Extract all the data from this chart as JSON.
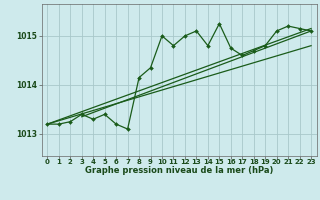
{
  "title": "Graphe pression niveau de la mer (hPa)",
  "bg_color": "#ceeaec",
  "grid_color": "#a8c8ca",
  "line_color": "#1a5c1a",
  "x_ticks": [
    0,
    1,
    2,
    3,
    4,
    5,
    6,
    7,
    8,
    9,
    10,
    11,
    12,
    13,
    14,
    15,
    16,
    17,
    18,
    19,
    20,
    21,
    22,
    23
  ],
  "y_ticks": [
    1013,
    1014,
    1015
  ],
  "ylim": [
    1012.55,
    1015.65
  ],
  "xlim": [
    -0.5,
    23.5
  ],
  "main_data": [
    1013.2,
    1013.2,
    1013.25,
    1013.4,
    1013.3,
    1013.4,
    1013.2,
    1013.1,
    1014.15,
    1014.35,
    1015.0,
    1014.8,
    1015.0,
    1015.1,
    1014.8,
    1015.25,
    1014.75,
    1014.6,
    1014.7,
    1014.8,
    1015.1,
    1015.2,
    1015.15,
    1015.1
  ],
  "trend1_x": [
    0,
    23
  ],
  "trend1_y": [
    1013.2,
    1015.15
  ],
  "trend2_x": [
    0,
    23
  ],
  "trend2_y": [
    1013.2,
    1014.8
  ],
  "trend3_x": [
    3,
    23
  ],
  "trend3_y": [
    1013.35,
    1015.1
  ]
}
